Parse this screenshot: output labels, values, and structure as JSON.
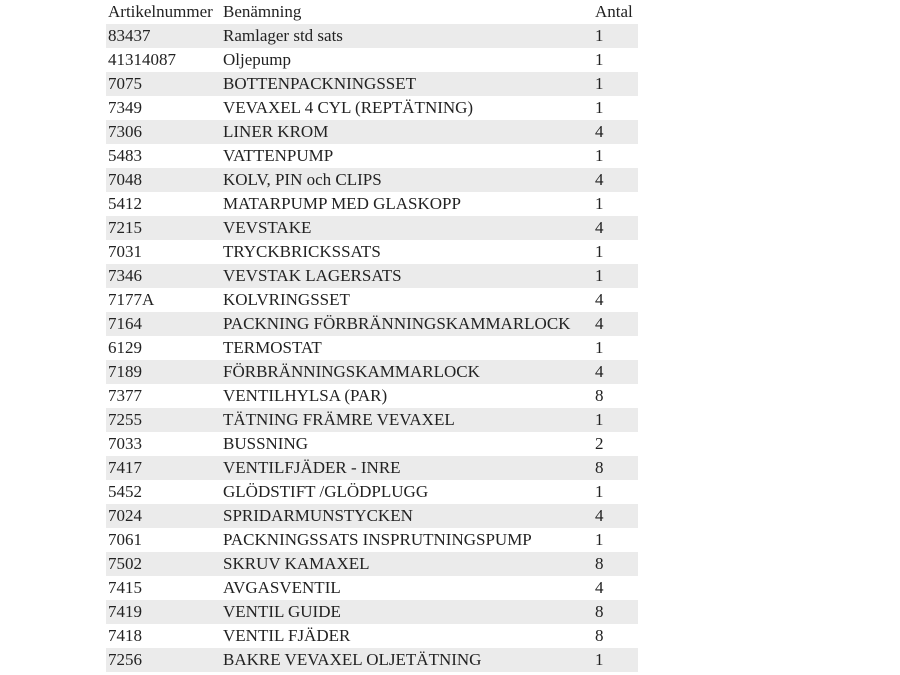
{
  "headers": {
    "article": "Artikelnummer",
    "name": "Benämning",
    "qty": "Antal"
  },
  "rows": [
    {
      "article": "83437",
      "name": "Ramlager std sats",
      "qty": "1"
    },
    {
      "article": "41314087",
      "name": "Oljepump",
      "qty": "1"
    },
    {
      "article": "7075",
      "name": "BOTTENPACKNINGSSET",
      "qty": "1"
    },
    {
      "article": "7349",
      "name": "VEVAXEL 4 CYL (REPTÄTNING)",
      "qty": "1"
    },
    {
      "article": "7306",
      "name": "LINER KROM",
      "qty": "4"
    },
    {
      "article": "5483",
      "name": "VATTENPUMP",
      "qty": "1"
    },
    {
      "article": "7048",
      "name": "KOLV, PIN och CLIPS",
      "qty": "4"
    },
    {
      "article": "5412",
      "name": "MATARPUMP MED GLASKOPP",
      "qty": "1"
    },
    {
      "article": "7215",
      "name": "VEVSTAKE",
      "qty": "4"
    },
    {
      "article": "7031",
      "name": "TRYCKBRICKSSATS",
      "qty": "1"
    },
    {
      "article": "7346",
      "name": "VEVSTAK LAGERSATS",
      "qty": "1"
    },
    {
      "article": "7177A",
      "name": "KOLVRINGSSET",
      "qty": "4"
    },
    {
      "article": "7164",
      "name": "PACKNING FÖRBRÄNNINGSKAMMARLOCK",
      "qty": "4"
    },
    {
      "article": "6129",
      "name": "TERMOSTAT",
      "qty": "1"
    },
    {
      "article": "7189",
      "name": "FÖRBRÄNNINGSKAMMARLOCK",
      "qty": "4"
    },
    {
      "article": "7377",
      "name": "VENTILHYLSA (PAR)",
      "qty": "8"
    },
    {
      "article": "7255",
      "name": "TÄTNING FRÄMRE VEVAXEL",
      "qty": "1"
    },
    {
      "article": "7033",
      "name": "BUSSNING",
      "qty": "2"
    },
    {
      "article": "7417",
      "name": "VENTILFJÄDER - INRE",
      "qty": "8"
    },
    {
      "article": "5452",
      "name": "GLÖDSTIFT /GLÖDPLUGG",
      "qty": "1"
    },
    {
      "article": "7024",
      "name": "SPRIDARMUNSTYCKEN",
      "qty": "4"
    },
    {
      "article": "7061",
      "name": "PACKNINGSSATS INSPRUTNINGSPUMP",
      "qty": "1"
    },
    {
      "article": "7502",
      "name": "SKRUV KAMAXEL",
      "qty": "8"
    },
    {
      "article": "7415",
      "name": "AVGASVENTIL",
      "qty": "4"
    },
    {
      "article": "7419",
      "name": "VENTIL GUIDE",
      "qty": "8"
    },
    {
      "article": "7418",
      "name": "VENTIL FJÄDER",
      "qty": "8"
    },
    {
      "article": "7256",
      "name": "BAKRE VEVAXEL OLJETÄTNING",
      "qty": "1"
    }
  ]
}
